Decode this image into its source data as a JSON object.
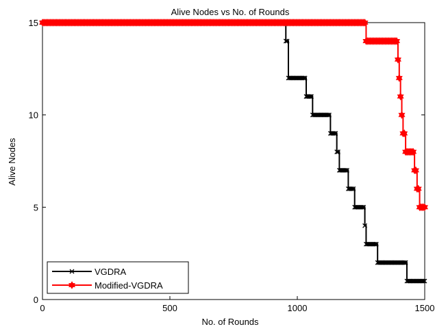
{
  "chart_data": {
    "type": "line",
    "title": "Alive Nodes vs  No. of Rounds",
    "xlabel": "No. of Rounds",
    "ylabel": "Alive Nodes",
    "xlim": [
      0,
      1500
    ],
    "ylim": [
      0,
      15
    ],
    "xticks": [
      0,
      500,
      1000,
      1500
    ],
    "yticks": [
      0,
      5,
      10,
      15
    ],
    "grid": false,
    "legend_position": "bottom-left",
    "series": [
      {
        "name": "VGDRA",
        "color": "#000000",
        "marker": "x",
        "x": [
          0,
          950,
          955,
          965,
          1035,
          1060,
          1130,
          1155,
          1165,
          1200,
          1225,
          1265,
          1270,
          1315,
          1430,
          1500
        ],
        "y": [
          15,
          15,
          14,
          12,
          11,
          10,
          9,
          8,
          7,
          6,
          5,
          4,
          3,
          2,
          1,
          1
        ]
      },
      {
        "name": "Modified-VGDRA",
        "color": "#ff0000",
        "marker": "hexagram",
        "x": [
          0,
          1265,
          1270,
          1385,
          1395,
          1400,
          1405,
          1410,
          1415,
          1425,
          1460,
          1470,
          1480,
          1500
        ],
        "y": [
          15,
          15,
          14,
          14,
          13,
          12,
          11,
          10,
          9,
          8,
          7,
          6,
          5,
          5
        ]
      }
    ]
  }
}
